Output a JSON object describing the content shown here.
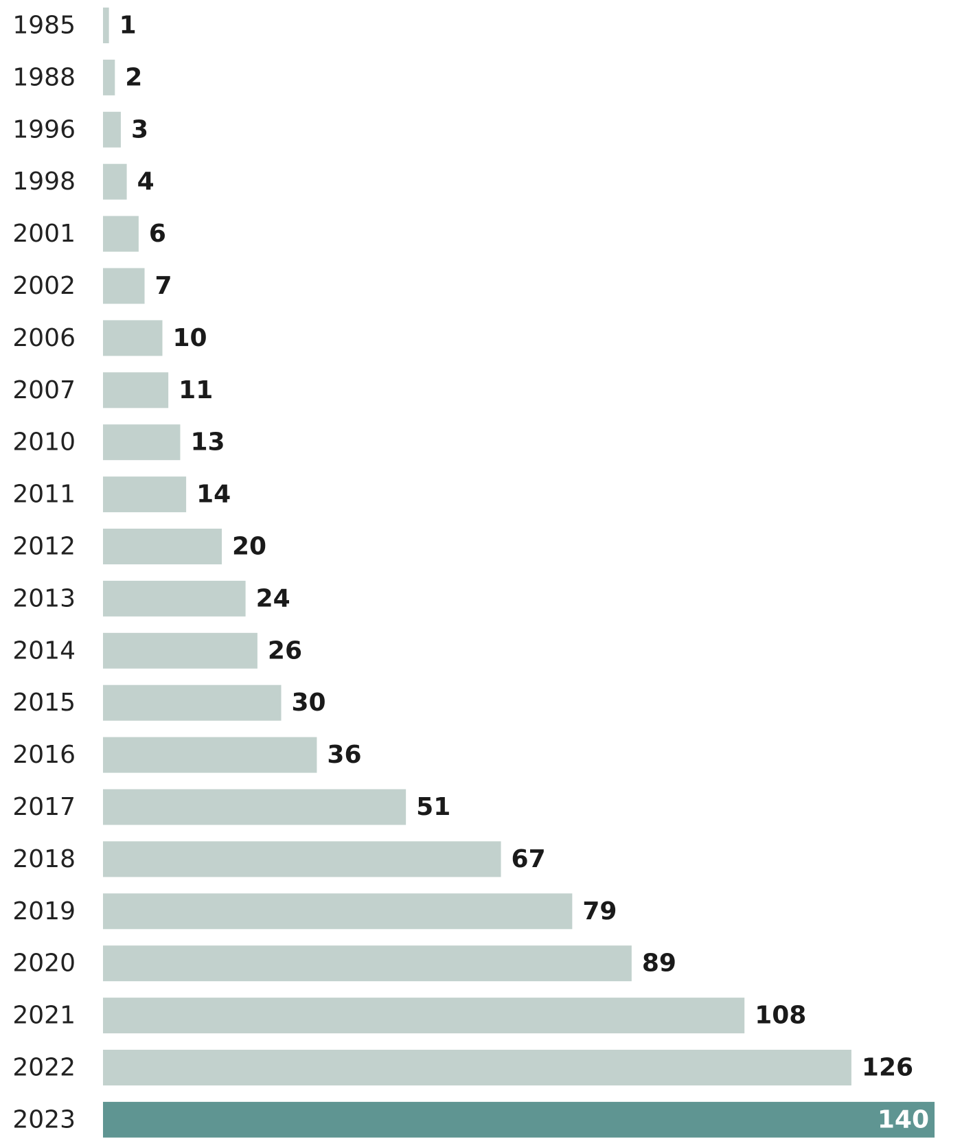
{
  "chart_data": {
    "type": "bar",
    "orientation": "horizontal",
    "title": "",
    "xlabel": "",
    "ylabel": "",
    "categories": [
      "1985",
      "1988",
      "1996",
      "1998",
      "2001",
      "2002",
      "2006",
      "2007",
      "2010",
      "2011",
      "2012",
      "2013",
      "2014",
      "2015",
      "2016",
      "2017",
      "2018",
      "2019",
      "2020",
      "2021",
      "2022",
      "2023"
    ],
    "values": [
      1,
      2,
      3,
      4,
      6,
      7,
      10,
      11,
      13,
      14,
      20,
      24,
      26,
      30,
      36,
      51,
      67,
      79,
      89,
      108,
      126,
      140
    ],
    "value_labels": [
      "1",
      "2",
      "3",
      "4",
      "6",
      "7",
      "10",
      "11",
      "13",
      "14",
      "20",
      "24",
      "26",
      "30",
      "36",
      "51",
      "67",
      "79",
      "89",
      "108",
      "126",
      "140"
    ],
    "xlim": [
      0,
      140
    ],
    "grid": false,
    "legend": "none",
    "colors": {
      "bar": "#c2d1cd",
      "highlight_bar": "#5f9592",
      "highlight_category": "2023",
      "label": "#1a1a1a",
      "highlight_label": "#ffffff",
      "axis_text": "#222222"
    }
  }
}
